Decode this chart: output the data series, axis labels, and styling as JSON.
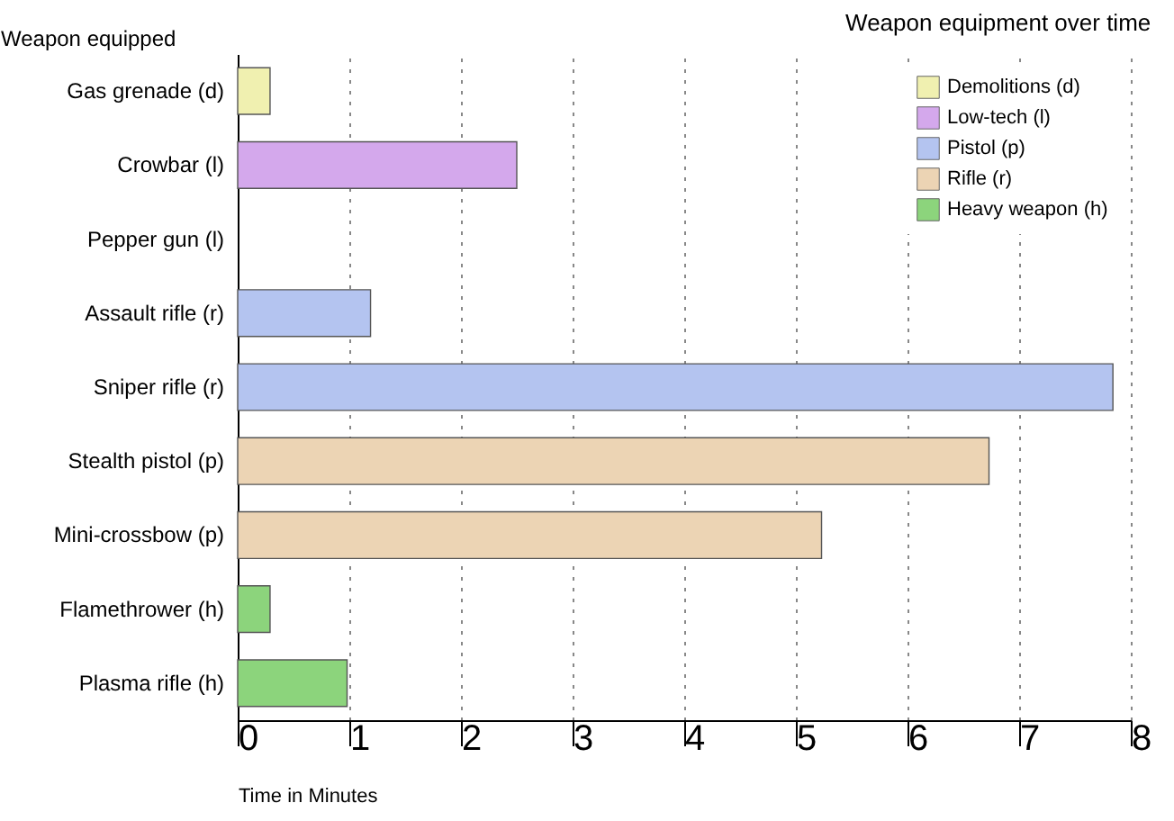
{
  "chart_data": {
    "type": "bar",
    "orientation": "horizontal",
    "title": "Weapon equipment over time",
    "xlabel": "Time in Minutes",
    "ylabel": "Weapon equipped",
    "categories": [
      "Gas grenade (d)",
      "Crowbar (l)",
      "Pepper gun (l)",
      "Assault rifle (r)",
      "Sniper rifle (r)",
      "Stealth pistol (p)",
      "Mini-crossbow (p)",
      "Flamethrower (h)",
      "Plasma rifle (h)"
    ],
    "series": [
      {
        "name": "Demolitions (d)",
        "color": "#f0f0b0",
        "values": [
          0.29,
          null,
          null,
          null,
          null,
          null,
          null,
          null,
          null
        ]
      },
      {
        "name": "Low-tech (l)",
        "color": "#d4a8ec",
        "values": [
          null,
          2.5,
          null,
          null,
          null,
          null,
          null,
          null,
          null
        ]
      },
      {
        "name": "Pistol (p)",
        "color": "#b4c4f0",
        "values": [
          null,
          null,
          null,
          1.19,
          7.84,
          null,
          null,
          null,
          null
        ]
      },
      {
        "name": "Rifle (r)",
        "color": "#ecd4b4",
        "values": [
          null,
          null,
          null,
          null,
          null,
          6.73,
          5.23,
          null,
          null
        ]
      },
      {
        "name": "Heavy weapon (h)",
        "color": "#8cd47c",
        "values": [
          null,
          null,
          null,
          null,
          null,
          null,
          null,
          0.29,
          0.98
        ]
      }
    ],
    "xlim": [
      0,
      8
    ],
    "xticks": [
      0,
      1,
      2,
      3,
      4,
      5,
      6,
      7,
      8
    ],
    "grid": "x",
    "legend": "top right"
  }
}
